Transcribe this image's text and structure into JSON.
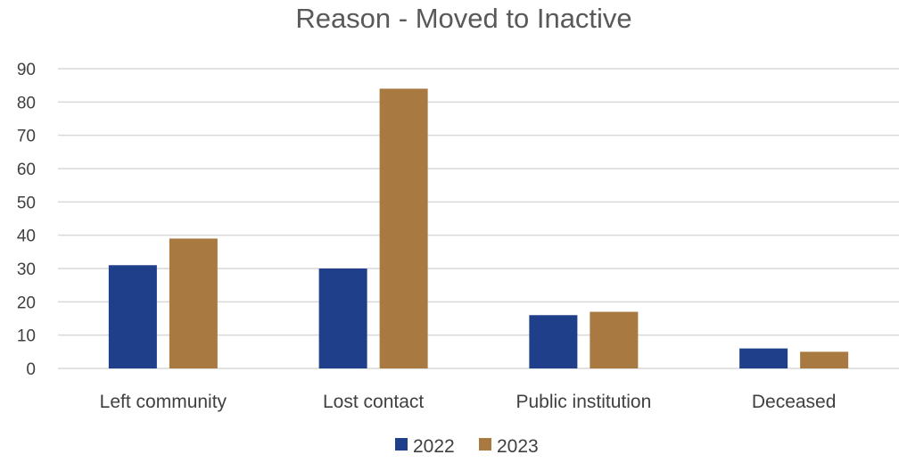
{
  "chart_data": {
    "type": "bar",
    "title": "Reason - Moved to Inactive",
    "xlabel": "",
    "ylabel": "",
    "categories": [
      "Left community",
      "Lost contact",
      "Public institution",
      "Deceased"
    ],
    "series": [
      {
        "name": "2022",
        "values": [
          31,
          30,
          16,
          6
        ],
        "color": "#1f3f8a"
      },
      {
        "name": "2023",
        "values": [
          39,
          84,
          17,
          5
        ],
        "color": "#a87a42"
      }
    ],
    "ylim": [
      0,
      90
    ],
    "yticks": [
      "0",
      "10",
      "20",
      "30",
      "40",
      "50",
      "60",
      "70",
      "80",
      "90"
    ],
    "grid": true,
    "legend_position": "bottom"
  }
}
